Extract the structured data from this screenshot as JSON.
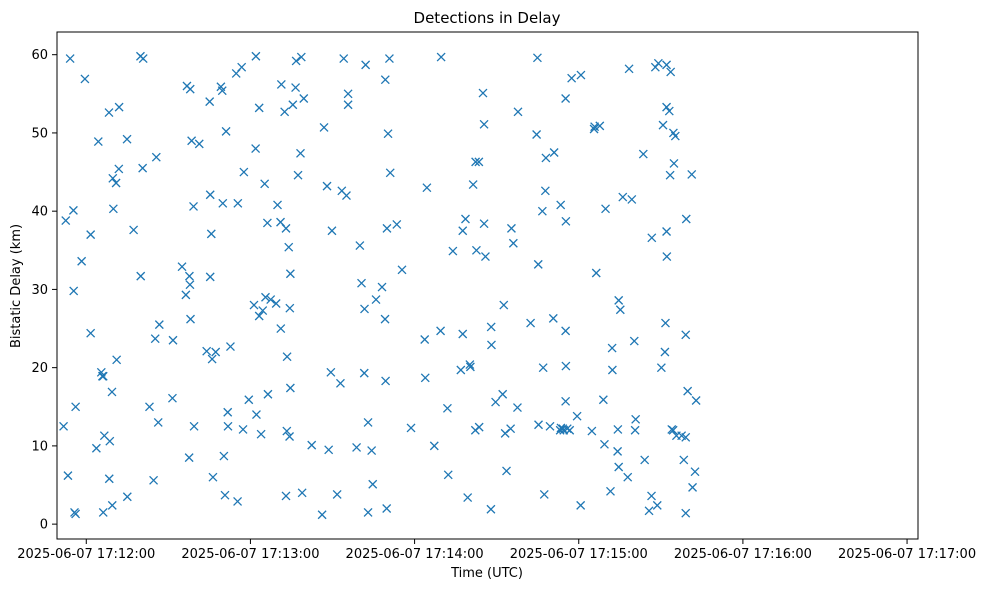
{
  "chart_data": {
    "type": "scatter",
    "title": "Detections in Delay",
    "xlabel": "Time (UTC)",
    "ylabel": "Bistatic Delay (km)",
    "marker": "x",
    "color": "#1f77b4",
    "grid": false,
    "xlim_seconds_after_17_11_00": [
      49.3,
      364
    ],
    "ylim": [
      -1.9,
      62.9
    ],
    "x_ticks": [
      {
        "t": 60,
        "label": "2025-06-07 17:12:00"
      },
      {
        "t": 120,
        "label": "2025-06-07 17:13:00"
      },
      {
        "t": 180,
        "label": "2025-06-07 17:14:00"
      },
      {
        "t": 240,
        "label": "2025-06-07 17:15:00"
      },
      {
        "t": 300,
        "label": "2025-06-07 17:16:00"
      },
      {
        "t": 360,
        "label": "2025-06-07 17:17:00"
      }
    ],
    "y_ticks": [
      {
        "v": 0,
        "label": "0"
      },
      {
        "v": 10,
        "label": "10"
      },
      {
        "v": 20,
        "label": "20"
      },
      {
        "v": 30,
        "label": "30"
      },
      {
        "v": 40,
        "label": "40"
      },
      {
        "v": 50,
        "label": "50"
      },
      {
        "v": 60,
        "label": "60"
      }
    ],
    "x_units": "seconds after 2025-06-07 17:11:00 UTC",
    "points": [
      [
        51.7,
        12.5
      ],
      [
        52.5,
        38.8
      ],
      [
        53.3,
        6.2
      ],
      [
        54.1,
        59.5
      ],
      [
        55.3,
        40.1
      ],
      [
        55.4,
        29.8
      ],
      [
        55.7,
        1.5
      ],
      [
        56.1,
        15.0
      ],
      [
        56.1,
        1.3
      ],
      [
        58.3,
        33.6
      ],
      [
        59.5,
        56.9
      ],
      [
        61.6,
        37.0
      ],
      [
        61.6,
        24.4
      ],
      [
        63.7,
        9.7
      ],
      [
        64.4,
        48.9
      ],
      [
        65.5,
        19.4
      ],
      [
        65.9,
        18.9
      ],
      [
        66.6,
        11.3
      ],
      [
        66.2,
        1.5
      ],
      [
        66.2,
        18.9
      ],
      [
        68.3,
        52.6
      ],
      [
        68.4,
        5.8
      ],
      [
        68.6,
        10.6
      ],
      [
        69.5,
        2.4
      ],
      [
        69.4,
        16.9
      ],
      [
        69.7,
        44.2
      ],
      [
        69.9,
        40.3
      ],
      [
        70.9,
        43.6
      ],
      [
        71.1,
        21.0
      ],
      [
        71.9,
        45.4
      ],
      [
        72.0,
        53.3
      ],
      [
        74.9,
        49.2
      ],
      [
        75.0,
        3.5
      ],
      [
        77.3,
        37.6
      ],
      [
        79.8,
        59.8
      ],
      [
        79.9,
        31.7
      ],
      [
        80.8,
        59.5
      ],
      [
        80.6,
        45.5
      ],
      [
        83.1,
        15.0
      ],
      [
        84.6,
        5.6
      ],
      [
        85.2,
        23.7
      ],
      [
        85.6,
        46.9
      ],
      [
        86.3,
        13.0
      ],
      [
        86.7,
        25.5
      ],
      [
        91.5,
        16.1
      ],
      [
        91.7,
        23.5
      ],
      [
        95.0,
        32.9
      ],
      [
        96.4,
        29.3
      ],
      [
        96.8,
        56.0
      ],
      [
        97.6,
        8.5
      ],
      [
        97.7,
        31.7
      ],
      [
        97.9,
        30.6
      ],
      [
        98.0,
        55.6
      ],
      [
        98.1,
        26.2
      ],
      [
        98.5,
        49.0
      ],
      [
        99.2,
        40.6
      ],
      [
        99.4,
        12.5
      ],
      [
        101.3,
        48.6
      ],
      [
        104.0,
        22.1
      ],
      [
        105.1,
        54.0
      ],
      [
        105.3,
        31.6
      ],
      [
        105.3,
        42.1
      ],
      [
        105.7,
        37.1
      ],
      [
        106.0,
        21.1
      ],
      [
        106.3,
        6.0
      ],
      [
        107.3,
        22.0
      ],
      [
        109.2,
        55.9
      ],
      [
        109.7,
        55.4
      ],
      [
        109.9,
        41.0
      ],
      [
        110.3,
        8.7
      ],
      [
        110.7,
        3.7
      ],
      [
        111.1,
        50.2
      ],
      [
        111.7,
        14.3
      ],
      [
        111.8,
        12.5
      ],
      [
        112.7,
        22.7
      ],
      [
        114.8,
        57.6
      ],
      [
        115.3,
        2.9
      ],
      [
        115.4,
        41.0
      ],
      [
        116.8,
        58.4
      ],
      [
        117.3,
        12.1
      ],
      [
        117.6,
        45.0
      ],
      [
        119.4,
        15.9
      ],
      [
        121.3,
        28.0
      ],
      [
        121.9,
        48.0
      ],
      [
        122.0,
        59.8
      ],
      [
        122.2,
        14.0
      ],
      [
        123.2,
        26.6
      ],
      [
        123.2,
        53.2
      ],
      [
        123.9,
        11.5
      ],
      [
        124.5,
        27.3
      ],
      [
        125.2,
        43.5
      ],
      [
        125.5,
        29.0
      ],
      [
        126.2,
        38.5
      ],
      [
        126.4,
        16.6
      ],
      [
        127.4,
        28.7
      ],
      [
        129.4,
        28.2
      ],
      [
        129.9,
        40.8
      ],
      [
        131.0,
        38.6
      ],
      [
        131.1,
        25.0
      ],
      [
        131.3,
        56.2
      ],
      [
        132.5,
        52.7
      ],
      [
        133.0,
        3.6
      ],
      [
        133.0,
        37.8
      ],
      [
        133.4,
        21.4
      ],
      [
        133.3,
        11.9
      ],
      [
        134.0,
        35.4
      ],
      [
        134.4,
        27.6
      ],
      [
        134.6,
        32.0
      ],
      [
        134.6,
        17.4
      ],
      [
        134.3,
        11.2
      ],
      [
        135.5,
        53.6
      ],
      [
        136.5,
        55.8
      ],
      [
        136.7,
        59.2
      ],
      [
        137.4,
        44.6
      ],
      [
        138.3,
        47.4
      ],
      [
        138.6,
        59.7
      ],
      [
        138.9,
        4.0
      ],
      [
        139.5,
        54.4
      ],
      [
        142.4,
        10.1
      ],
      [
        146.2,
        1.2
      ],
      [
        146.9,
        50.7
      ],
      [
        148.0,
        43.2
      ],
      [
        148.6,
        9.5
      ],
      [
        149.4,
        19.4
      ],
      [
        149.8,
        37.5
      ],
      [
        151.7,
        3.8
      ],
      [
        152.9,
        18.0
      ],
      [
        153.4,
        42.6
      ],
      [
        154.1,
        59.5
      ],
      [
        155.1,
        42.0
      ],
      [
        155.7,
        55.0
      ],
      [
        155.7,
        53.6
      ],
      [
        158.8,
        9.8
      ],
      [
        160.0,
        35.6
      ],
      [
        160.6,
        30.8
      ],
      [
        161.6,
        19.3
      ],
      [
        161.7,
        27.5
      ],
      [
        162.1,
        58.7
      ],
      [
        163.0,
        1.5
      ],
      [
        163.0,
        13.0
      ],
      [
        164.3,
        9.4
      ],
      [
        164.7,
        5.1
      ],
      [
        165.9,
        28.7
      ],
      [
        168.1,
        30.3
      ],
      [
        169.3,
        56.8
      ],
      [
        169.2,
        26.2
      ],
      [
        169.4,
        18.3
      ],
      [
        169.8,
        2.0
      ],
      [
        169.9,
        37.8
      ],
      [
        170.3,
        49.9
      ],
      [
        170.8,
        59.5
      ],
      [
        171.1,
        44.9
      ],
      [
        173.5,
        38.3
      ],
      [
        175.4,
        32.5
      ],
      [
        178.7,
        12.3
      ],
      [
        183.7,
        23.6
      ],
      [
        183.9,
        18.7
      ],
      [
        184.5,
        43.0
      ],
      [
        187.2,
        10.0
      ],
      [
        189.7,
        59.7
      ],
      [
        189.5,
        24.7
      ],
      [
        192.0,
        14.8
      ],
      [
        192.3,
        6.3
      ],
      [
        194.0,
        34.9
      ],
      [
        196.9,
        19.7
      ],
      [
        197.6,
        37.5
      ],
      [
        197.6,
        24.3
      ],
      [
        198.6,
        39.0
      ],
      [
        199.4,
        3.4
      ],
      [
        200.2,
        20.4
      ],
      [
        200.4,
        20.1
      ],
      [
        201.4,
        43.4
      ],
      [
        202.3,
        46.3
      ],
      [
        202.2,
        12.0
      ],
      [
        202.6,
        35.0
      ],
      [
        203.5,
        46.3
      ],
      [
        203.6,
        12.4
      ],
      [
        205.0,
        55.1
      ],
      [
        205.4,
        51.1
      ],
      [
        205.4,
        38.4
      ],
      [
        205.9,
        34.2
      ],
      [
        207.9,
        1.9
      ],
      [
        208.0,
        25.2
      ],
      [
        208.1,
        22.9
      ],
      [
        209.6,
        15.6
      ],
      [
        212.2,
        16.6
      ],
      [
        212.6,
        28.0
      ],
      [
        213.1,
        11.6
      ],
      [
        213.6,
        6.8
      ],
      [
        215.1,
        12.2
      ],
      [
        215.4,
        37.8
      ],
      [
        216.1,
        35.9
      ],
      [
        217.6,
        14.9
      ],
      [
        217.8,
        52.7
      ],
      [
        222.4,
        25.7
      ],
      [
        224.6,
        49.8
      ],
      [
        224.9,
        59.6
      ],
      [
        225.2,
        33.2
      ],
      [
        225.3,
        12.7
      ],
      [
        226.7,
        40.0
      ],
      [
        227.0,
        20.0
      ],
      [
        227.4,
        3.8
      ],
      [
        227.8,
        42.6
      ],
      [
        228.0,
        46.8
      ],
      [
        229.5,
        12.5
      ],
      [
        230.7,
        26.3
      ],
      [
        231.0,
        47.5
      ],
      [
        233.2,
        12.0
      ],
      [
        233.4,
        40.8
      ],
      [
        233.5,
        12.3
      ],
      [
        234.2,
        12.2
      ],
      [
        234.5,
        12.0
      ],
      [
        235.2,
        54.4
      ],
      [
        235.2,
        15.7
      ],
      [
        235.2,
        24.7
      ],
      [
        235.3,
        20.2
      ],
      [
        235.3,
        38.7
      ],
      [
        235.8,
        12.2
      ],
      [
        236.7,
        12.0
      ],
      [
        237.4,
        57.0
      ],
      [
        239.4,
        13.8
      ],
      [
        240.8,
        57.4
      ],
      [
        240.7,
        2.4
      ],
      [
        244.8,
        11.9
      ],
      [
        245.6,
        50.5
      ],
      [
        245.8,
        50.8
      ],
      [
        246.4,
        32.1
      ],
      [
        247.7,
        50.9
      ],
      [
        249.0,
        15.9
      ],
      [
        249.4,
        10.2
      ],
      [
        249.8,
        40.3
      ],
      [
        251.6,
        4.2
      ],
      [
        252.2,
        22.5
      ],
      [
        252.3,
        19.7
      ],
      [
        254.2,
        9.3
      ],
      [
        254.3,
        12.1
      ],
      [
        254.6,
        7.3
      ],
      [
        254.6,
        28.6
      ],
      [
        255.2,
        27.4
      ],
      [
        256.1,
        41.8
      ],
      [
        257.9,
        6.0
      ],
      [
        258.4,
        58.2
      ],
      [
        259.4,
        41.5
      ],
      [
        260.3,
        23.4
      ],
      [
        260.6,
        12.0
      ],
      [
        260.8,
        13.4
      ],
      [
        263.6,
        47.3
      ],
      [
        264.1,
        8.2
      ],
      [
        265.7,
        1.7
      ],
      [
        266.7,
        36.6
      ],
      [
        266.6,
        3.6
      ],
      [
        268.0,
        58.4
      ],
      [
        268.7,
        2.4
      ],
      [
        269.1,
        58.9
      ],
      [
        270.2,
        20.0
      ],
      [
        270.8,
        51.0
      ],
      [
        271.5,
        22.0
      ],
      [
        271.7,
        25.7
      ],
      [
        272.1,
        53.3
      ],
      [
        272.1,
        58.7
      ],
      [
        272.1,
        37.4
      ],
      [
        272.2,
        34.2
      ],
      [
        273.1,
        52.8
      ],
      [
        273.4,
        44.6
      ],
      [
        273.6,
        57.8
      ],
      [
        274.0,
        12.1
      ],
      [
        274.5,
        12.0
      ],
      [
        274.6,
        50.0
      ],
      [
        274.8,
        46.1
      ],
      [
        275.3,
        49.6
      ],
      [
        275.7,
        11.3
      ],
      [
        277.6,
        11.3
      ],
      [
        278.4,
        8.2
      ],
      [
        279.1,
        11.1
      ],
      [
        279.3,
        39.0
      ],
      [
        279.1,
        24.2
      ],
      [
        279.1,
        1.4
      ],
      [
        279.8,
        17.0
      ],
      [
        281.3,
        44.7
      ],
      [
        281.6,
        4.7
      ],
      [
        282.5,
        6.7
      ],
      [
        282.9,
        15.8
      ]
    ]
  }
}
